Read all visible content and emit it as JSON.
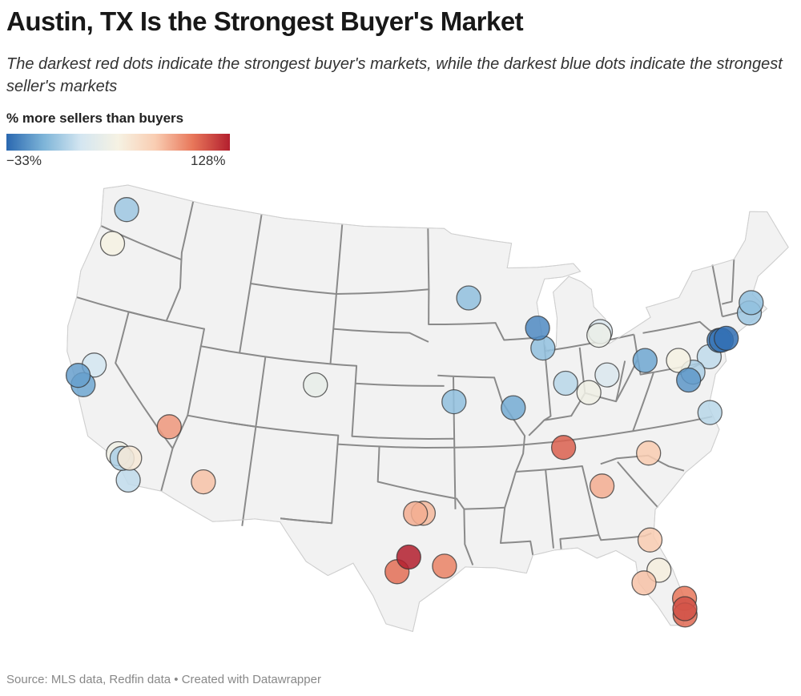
{
  "title": "Austin, TX Is the Strongest Buyer's Market",
  "subtitle": "The darkest red dots indicate the strongest buyer's markets, while the darkest blue dots indicate the strongest seller's markets",
  "legend": {
    "title": "% more sellers than buyers",
    "min_label": "−33%",
    "max_label": "128%",
    "min": -33,
    "max": 128,
    "colors": [
      "#2a68b0",
      "#7db4d8",
      "#d4e6f1",
      "#f6f2e3",
      "#f9cdb2",
      "#e8775a",
      "#b31f2e"
    ]
  },
  "source": "Source: MLS data, Redfin data • Created with Datawrapper",
  "map": {
    "region": "Contiguous United States",
    "land_color": "#f2f2f2",
    "border_color": "#8a8a8a",
    "dots": [
      {
        "lon": -122.33,
        "lat": 47.61,
        "value": -10
      },
      {
        "lon": -122.68,
        "lat": 45.52,
        "value": 10
      },
      {
        "lon": -121.49,
        "lat": 38.58,
        "value": -2
      },
      {
        "lon": -122.42,
        "lat": 37.77,
        "value": -20
      },
      {
        "lon": -121.89,
        "lat": 37.34,
        "value": -18
      },
      {
        "lon": -115.14,
        "lat": 36.17,
        "value": 55
      },
      {
        "lon": -118.24,
        "lat": 34.05,
        "value": 8
      },
      {
        "lon": -117.4,
        "lat": 33.95,
        "value": 15
      },
      {
        "lon": -117.91,
        "lat": 33.84,
        "value": -8
      },
      {
        "lon": -117.16,
        "lat": 32.72,
        "value": -5
      },
      {
        "lon": -112.07,
        "lat": 33.45,
        "value": 35
      },
      {
        "lon": -104.99,
        "lat": 39.74,
        "value": 5
      },
      {
        "lon": -93.27,
        "lat": 44.98,
        "value": -12
      },
      {
        "lon": -87.91,
        "lat": 43.04,
        "value": -25
      },
      {
        "lon": -87.63,
        "lat": 41.88,
        "value": -12
      },
      {
        "lon": -83.2,
        "lat": 42.25,
        "value": 6
      },
      {
        "lon": -83.05,
        "lat": 42.45,
        "value": 0
      },
      {
        "lon": -79.99,
        "lat": 40.44,
        "value": -18
      },
      {
        "lon": -77.5,
        "lat": 40.1,
        "value": 10
      },
      {
        "lon": -94.58,
        "lat": 39.1,
        "value": -12
      },
      {
        "lon": -90.2,
        "lat": 38.63,
        "value": -17
      },
      {
        "lon": -86.16,
        "lat": 39.77,
        "value": -6
      },
      {
        "lon": -84.51,
        "lat": 39.1,
        "value": 8
      },
      {
        "lon": -82.99,
        "lat": 39.96,
        "value": 0
      },
      {
        "lon": -75.17,
        "lat": 39.95,
        "value": -5
      },
      {
        "lon": -76.61,
        "lat": 39.29,
        "value": -8
      },
      {
        "lon": -77.04,
        "lat": 38.9,
        "value": -22
      },
      {
        "lon": -74.17,
        "lat": 40.73,
        "value": -28
      },
      {
        "lon": -74.0,
        "lat": 40.71,
        "value": -30
      },
      {
        "lon": -73.6,
        "lat": 40.75,
        "value": -31
      },
      {
        "lon": -71.06,
        "lat": 42.36,
        "value": -12
      },
      {
        "lon": -71.41,
        "lat": 41.82,
        "value": -10
      },
      {
        "lon": -76.0,
        "lat": 36.85,
        "value": -6
      },
      {
        "lon": -86.78,
        "lat": 36.16,
        "value": 85
      },
      {
        "lon": -80.84,
        "lat": 35.23,
        "value": 30
      },
      {
        "lon": -84.39,
        "lat": 33.75,
        "value": 45
      },
      {
        "lon": -96.8,
        "lat": 32.78,
        "value": 40
      },
      {
        "lon": -97.33,
        "lat": 32.75,
        "value": 45
      },
      {
        "lon": -97.74,
        "lat": 30.27,
        "value": 128
      },
      {
        "lon": -98.49,
        "lat": 29.42,
        "value": 75
      },
      {
        "lon": -95.37,
        "lat": 29.76,
        "value": 65
      },
      {
        "lon": -81.66,
        "lat": 30.33,
        "value": 30
      },
      {
        "lon": -81.38,
        "lat": 28.54,
        "value": 12
      },
      {
        "lon": -82.46,
        "lat": 27.95,
        "value": 35
      },
      {
        "lon": -80.05,
        "lat": 26.71,
        "value": 70
      },
      {
        "lon": -80.14,
        "lat": 26.12,
        "value": 95
      },
      {
        "lon": -80.19,
        "lat": 25.76,
        "value": 80
      }
    ]
  }
}
